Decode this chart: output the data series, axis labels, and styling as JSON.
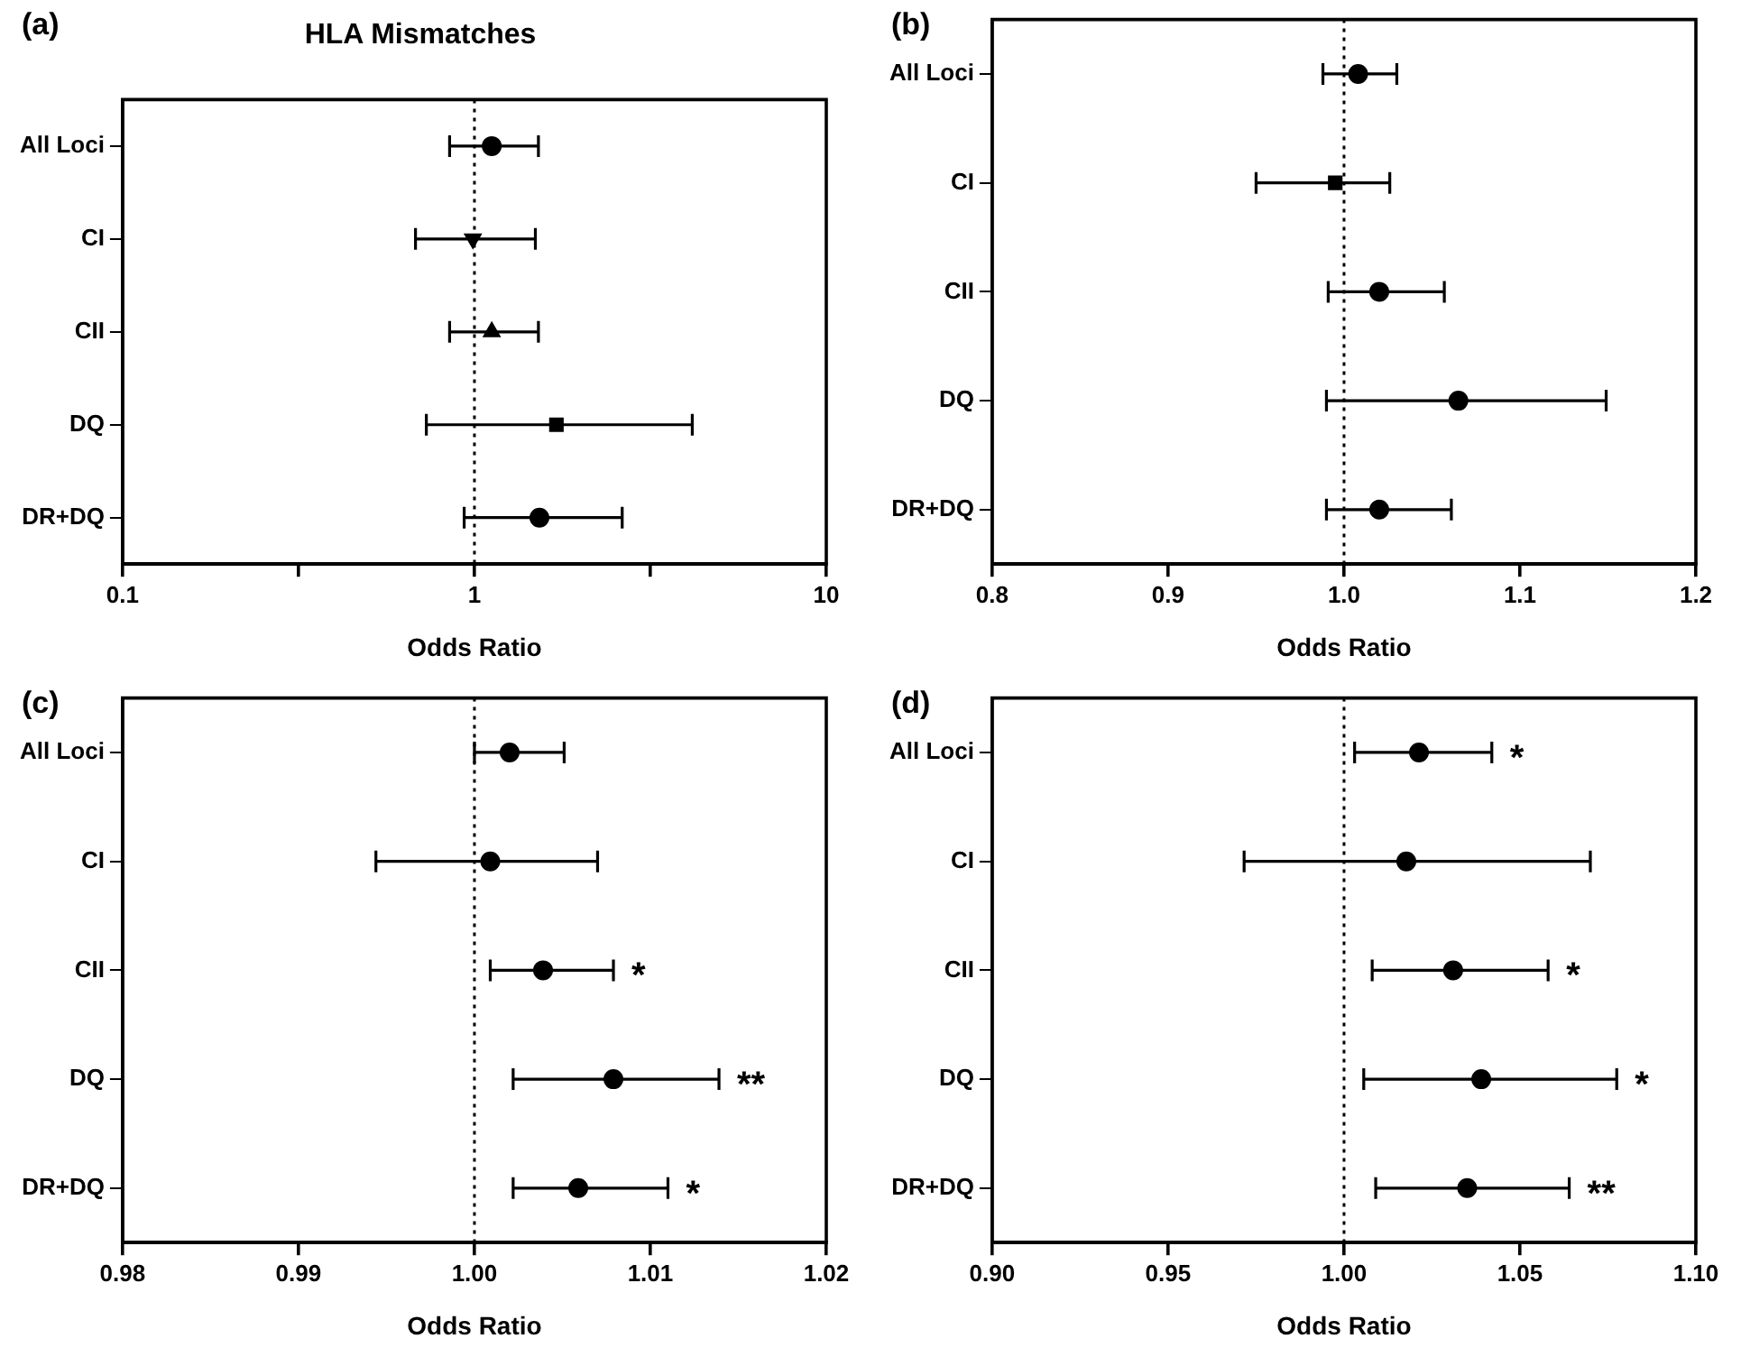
{
  "chart_data": [
    {
      "type": "scatter",
      "title": "HLA Mismatches",
      "xlabel": "Odds Ratio",
      "annotations": [
        "(a)"
      ],
      "categories": [
        "All Loci",
        "CI",
        "CII",
        "DQ",
        "DR+DQ"
      ],
      "orientation": "horizontal",
      "log": "x",
      "xlim": [
        0.1,
        10
      ],
      "xticks": [
        {
          "value": 0.1,
          "label": "0.1"
        },
        {
          "value": 0.316,
          "label": null
        },
        {
          "value": 1,
          "label": "1"
        },
        {
          "value": 3.16,
          "label": null
        },
        {
          "value": 10,
          "label": "10"
        }
      ],
      "ref_lines": [
        {
          "axis": "x",
          "value": 1,
          "line_style": "dotted"
        }
      ],
      "series": [
        {
          "color": "#000000",
          "marker": "circle",
          "values": [
            1.12,
            null,
            null,
            null,
            1.53
          ],
          "errors": [
            [
              0.85,
              1.52
            ],
            null,
            null,
            null,
            [
              0.935,
              2.63
            ]
          ]
        },
        {
          "color": "#000000",
          "marker": "triangle_down",
          "values": [
            null,
            0.99,
            null,
            null,
            null
          ],
          "errors": [
            null,
            [
              0.68,
              1.49
            ],
            null,
            null,
            null
          ]
        },
        {
          "color": "#000000",
          "marker": "triangle",
          "values": [
            null,
            null,
            1.12,
            null,
            null
          ],
          "errors": [
            null,
            null,
            [
              0.85,
              1.52
            ],
            null,
            null
          ]
        },
        {
          "color": "#000000",
          "marker": "square",
          "values": [
            null,
            null,
            null,
            1.71,
            null
          ],
          "errors": [
            null,
            null,
            null,
            [
              0.73,
              4.16
            ],
            null
          ]
        }
      ]
    },
    {
      "type": "scatter",
      "orientation": "horizontal",
      "xlabel": "Odds Ratio",
      "annotations": [
        "(b)"
      ],
      "categories": [
        "All Loci",
        "CI",
        "CII",
        "DQ",
        "DR+DQ"
      ],
      "xlim": [
        0.8,
        1.2
      ],
      "xticks": [
        {
          "value": 0.8,
          "label": "0.8"
        },
        {
          "value": 0.9,
          "label": "0.9"
        },
        {
          "value": 1,
          "label": "1.0"
        },
        {
          "value": 1.1,
          "label": "1.1"
        },
        {
          "value": 1.2,
          "label": "1.2"
        }
      ],
      "ref_lines": [
        {
          "axis": "x",
          "value": 1,
          "line_style": "dotted"
        }
      ],
      "series": [
        {
          "color": "#000000",
          "marker": "circle",
          "values": [
            1.008,
            null,
            1.02,
            1.065,
            1.02
          ],
          "errors": [
            [
              0.988,
              1.03
            ],
            null,
            [
              0.991,
              1.057
            ],
            [
              0.99,
              1.149
            ],
            [
              0.99,
              1.061
            ]
          ]
        },
        {
          "color": "#000000",
          "marker": "square",
          "values": [
            null,
            0.995,
            null,
            null,
            null
          ],
          "errors": [
            null,
            [
              0.95,
              1.026
            ],
            null,
            null,
            null
          ]
        }
      ]
    },
    {
      "type": "scatter",
      "orientation": "horizontal",
      "xlabel": "Odds Ratio",
      "annotations": [
        "(c)",
        {
          "text": "*",
          "x": 1.0079,
          "y": "CII"
        },
        {
          "text": "**",
          "x": 1.0139,
          "y": "DQ"
        },
        {
          "text": "*",
          "x": 1.011,
          "y": "DR+DQ"
        }
      ],
      "categories": [
        "All Loci",
        "CI",
        "CII",
        "DQ",
        "DR+DQ"
      ],
      "xlim": [
        0.98,
        1.02
      ],
      "xticks": [
        {
          "value": 0.98,
          "label": "0.98"
        },
        {
          "value": 0.99,
          "label": "0.99"
        },
        {
          "value": 1,
          "label": "1.00"
        },
        {
          "value": 1.01,
          "label": "1.01"
        },
        {
          "value": 1.02,
          "label": "1.02"
        }
      ],
      "ref_lines": [
        {
          "axis": "x",
          "value": 1,
          "line_style": "dotted"
        }
      ],
      "series": [
        {
          "color": "#000000",
          "marker": "circle",
          "values": [
            1.002,
            1.0009,
            1.0039,
            1.0079,
            1.0059
          ],
          "errors": [
            [
              1.0,
              1.0051
            ],
            [
              0.9944,
              1.007
            ],
            [
              1.0009,
              1.0079
            ],
            [
              1.0022,
              1.0139
            ],
            [
              1.0022,
              1.011
            ]
          ]
        }
      ]
    },
    {
      "type": "scatter",
      "orientation": "horizontal",
      "xlabel": "Odds Ratio",
      "annotations": [
        "(d)",
        {
          "text": "*",
          "x": 1.042,
          "y": "All Loci"
        },
        {
          "text": "*",
          "x": 1.058,
          "y": "CII"
        },
        {
          "text": "*",
          "x": 1.0775,
          "y": "DQ"
        },
        {
          "text": "**",
          "x": 1.064,
          "y": "DR+DQ"
        }
      ],
      "categories": [
        "All Loci",
        "CI",
        "CII",
        "DQ",
        "DR+DQ"
      ],
      "xlim": [
        0.9,
        1.1
      ],
      "xticks": [
        {
          "value": 0.9,
          "label": "0.90"
        },
        {
          "value": 0.95,
          "label": "0.95"
        },
        {
          "value": 1,
          "label": "1.00"
        },
        {
          "value": 1.05,
          "label": "1.05"
        },
        {
          "value": 1.1,
          "label": "1.10"
        }
      ],
      "ref_lines": [
        {
          "axis": "x",
          "value": 1,
          "line_style": "dotted"
        }
      ],
      "series": [
        {
          "color": "#000000",
          "marker": "circle",
          "values": [
            1.0213,
            1.0177,
            1.031,
            1.039,
            1.035
          ],
          "errors": [
            [
              1.003,
              1.042
            ],
            [
              0.9716,
              1.07
            ],
            [
              1.008,
              1.058
            ],
            [
              1.0056,
              1.0775
            ],
            [
              1.009,
              1.064
            ]
          ]
        }
      ]
    }
  ]
}
